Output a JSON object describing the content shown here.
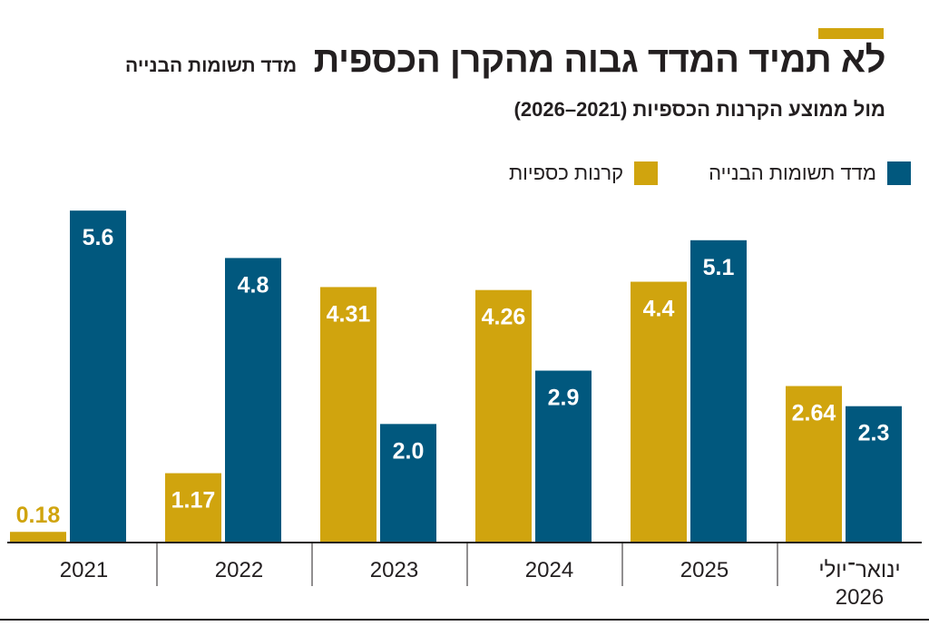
{
  "header": {
    "title": "לא תמיד המדד גבוה מהקרן הכספית",
    "title_tag": "מדד תשומות הבנייה",
    "subtitle": "מול ממוצע הקרנות הכספיות (2021–2026)"
  },
  "colors": {
    "gold": "#d0a40e",
    "blue": "#01587e",
    "text": "#231f20"
  },
  "legend": {
    "blue_label": "מדד תשומות הבנייה",
    "gold_label": "קרנות כספיות"
  },
  "chart_data": {
    "type": "bar",
    "title": "לא תמיד המדד גבוה מהקרן הכספית",
    "subtitle": "מול ממוצע הקרנות הכספיות (2021–2026)",
    "xlabel": "",
    "ylabel": "",
    "ylim": [
      0,
      6
    ],
    "grid": false,
    "legend_position": "top-right",
    "categories": [
      "2021",
      "2022",
      "2023",
      "2024",
      "2025",
      "ינואר־יולי 2026"
    ],
    "category_lines": [
      [
        "2021"
      ],
      [
        "2022"
      ],
      [
        "2023"
      ],
      [
        "2024"
      ],
      [
        "2025"
      ],
      [
        "ינואר־יולי",
        "2026"
      ]
    ],
    "series": [
      {
        "name": "קרנות כספיות",
        "color": "#d0a40e",
        "values": [
          0.18,
          1.17,
          4.31,
          4.26,
          4.4,
          2.64
        ],
        "labels": [
          "0.18",
          "1.17",
          "4.31",
          "4.26",
          "4.4",
          "2.64"
        ]
      },
      {
        "name": "מדד תשומות הבנייה",
        "color": "#01587e",
        "values": [
          5.6,
          4.8,
          2.0,
          2.9,
          5.1,
          2.3
        ],
        "labels": [
          "5.6",
          "4.8",
          "2.0",
          "2.9",
          "5.1",
          "2.3"
        ]
      }
    ]
  }
}
